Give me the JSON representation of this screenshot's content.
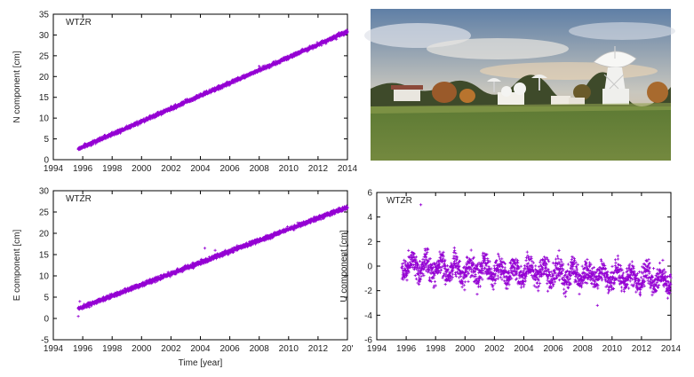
{
  "figure": {
    "photo_description_icon": "radio-telescope-observatory-photo"
  },
  "chart_data": [
    {
      "id": "N",
      "type": "scatter",
      "title": "WTZR",
      "xlabel": "",
      "ylabel": "N component [cm]",
      "xlim": [
        1994,
        2014
      ],
      "ylim": [
        0,
        35
      ],
      "xticks": [
        "1994",
        "1996",
        "1998",
        "2000",
        "2002",
        "2004",
        "2006",
        "2008",
        "2010",
        "2012",
        "2014"
      ],
      "yticks": [
        "0",
        "5",
        "10",
        "15",
        "20",
        "25",
        "30",
        "35"
      ],
      "trend": {
        "x_start": 1995.7,
        "x_end": 2014.0,
        "y_start": 2.6,
        "y_end": 30.8
      },
      "noise_cm": 0.45,
      "outliers": [
        [
          2008.0,
          22.5
        ]
      ],
      "color": "#9400d3"
    },
    {
      "id": "E",
      "type": "scatter",
      "title": "WTZR",
      "xlabel": "Time [year]",
      "ylabel": "E component [cm]",
      "xlim": [
        1994,
        2014
      ],
      "ylim": [
        -5,
        30
      ],
      "xticks": [
        "1994",
        "1996",
        "1998",
        "2000",
        "2002",
        "2004",
        "2006",
        "2008",
        "2010",
        "2012",
        "20'"
      ],
      "yticks": [
        "-5",
        "0",
        "5",
        "10",
        "15",
        "20",
        "25",
        "30"
      ],
      "trend": {
        "x_start": 1995.7,
        "x_end": 2014.0,
        "y_start": 2.3,
        "y_end": 26.2
      },
      "noise_cm": 0.5,
      "outliers": [
        [
          1995.7,
          0.5
        ],
        [
          1995.8,
          4.0
        ],
        [
          2004.3,
          16.5
        ],
        [
          2005.0,
          16.0
        ]
      ],
      "color": "#9400d3"
    },
    {
      "id": "U",
      "type": "scatter",
      "title": "WTZR",
      "xlabel": "",
      "ylabel": "U component [cm]",
      "xlim": [
        1994,
        2014
      ],
      "ylim": [
        -6,
        6
      ],
      "xticks": [
        "1994",
        "1996",
        "1998",
        "2000",
        "2002",
        "2004",
        "2006",
        "2008",
        "2010",
        "2012",
        "2014"
      ],
      "yticks": [
        "-6",
        "-4",
        "-2",
        "0",
        "2",
        "4",
        "6"
      ],
      "trend": {
        "x_start": 1995.7,
        "x_end": 2014.0,
        "y_start": 0.0,
        "y_end": -1.1
      },
      "noise_cm": 1.0,
      "outliers": [
        [
          1997.0,
          5.0
        ],
        [
          2009.0,
          -3.2
        ]
      ],
      "color": "#9400d3"
    }
  ]
}
